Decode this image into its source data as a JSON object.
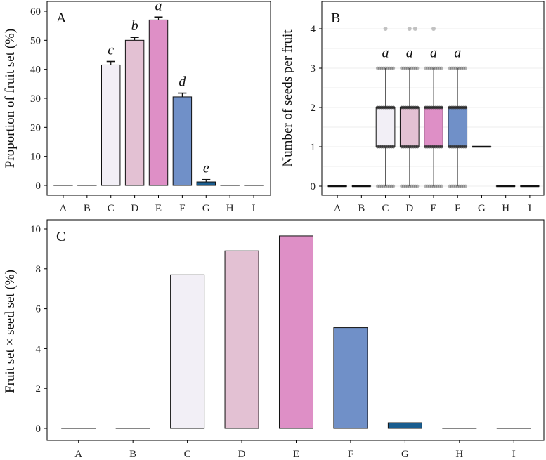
{
  "chart_data": [
    {
      "id": "A",
      "type": "bar",
      "panel_label": "A",
      "ylabel": "Proportion of fruit set (%)",
      "xlabel": "",
      "ylim": [
        0,
        60
      ],
      "yticks": [
        0,
        10,
        20,
        30,
        40,
        50,
        60
      ],
      "categories": [
        "A",
        "B",
        "C",
        "D",
        "E",
        "F",
        "G",
        "H",
        "I"
      ],
      "values": [
        0,
        0,
        41.5,
        50,
        57,
        30.5,
        1.2,
        0,
        0
      ],
      "errors": [
        0,
        0,
        1.2,
        1.0,
        1.0,
        1.3,
        0.8,
        0,
        0
      ],
      "letters": [
        "",
        "",
        "c",
        "b",
        "a",
        "d",
        "e",
        "",
        ""
      ],
      "colors": [
        "#f2eff6",
        "#f2eff6",
        "#f2eff6",
        "#e3c1d3",
        "#de8fc6",
        "#7090c8",
        "#1a5d8f",
        "#1a5d8f",
        "#1a5d8f"
      ]
    },
    {
      "id": "B",
      "type": "box",
      "panel_label": "B",
      "ylabel": "Number of seeds per fruit",
      "xlabel": "",
      "ylim": [
        0,
        4
      ],
      "yticks": [
        0,
        1,
        2,
        3,
        4
      ],
      "categories": [
        "A",
        "B",
        "C",
        "D",
        "E",
        "F",
        "G",
        "H",
        "I"
      ],
      "boxes": [
        {
          "q1": 0,
          "median": 0,
          "q3": 0,
          "low": 0,
          "high": 0,
          "outliers": []
        },
        {
          "q1": 0,
          "median": 0,
          "q3": 0,
          "low": 0,
          "high": 0,
          "outliers": []
        },
        {
          "q1": 1,
          "median": 2,
          "q3": 2,
          "low": 0,
          "high": 3,
          "outliers": [
            4
          ]
        },
        {
          "q1": 1,
          "median": 2,
          "q3": 2,
          "low": 0,
          "high": 3,
          "outliers": [
            4
          ]
        },
        {
          "q1": 1,
          "median": 2,
          "q3": 2,
          "low": 0,
          "high": 3,
          "outliers": [
            4
          ]
        },
        {
          "q1": 1,
          "median": 2,
          "q3": 2,
          "low": 0,
          "high": 3,
          "outliers": []
        },
        {
          "q1": 1,
          "median": 1,
          "q3": 1,
          "low": 1,
          "high": 1,
          "outliers": []
        },
        {
          "q1": 0,
          "median": 0,
          "q3": 0,
          "low": 0,
          "high": 0,
          "outliers": []
        },
        {
          "q1": 0,
          "median": 0,
          "q3": 0,
          "low": 0,
          "high": 0,
          "outliers": []
        }
      ],
      "letters": [
        "",
        "",
        "a",
        "a",
        "a",
        "a",
        "",
        "",
        ""
      ],
      "colors": [
        "#f2eff6",
        "#f2eff6",
        "#f2eff6",
        "#e3c1d3",
        "#de8fc6",
        "#7090c8",
        "#1a5d8f",
        "#1a5d8f",
        "#1a5d8f"
      ]
    },
    {
      "id": "C",
      "type": "bar",
      "panel_label": "C",
      "ylabel": "Fruit set × seed set (%)",
      "xlabel": "",
      "ylim": [
        0,
        10
      ],
      "yticks": [
        0,
        2,
        4,
        6,
        8,
        10
      ],
      "categories": [
        "A",
        "B",
        "C",
        "D",
        "E",
        "F",
        "G",
        "H",
        "I"
      ],
      "values": [
        0,
        0,
        7.7,
        8.9,
        9.65,
        5.05,
        0.28,
        0,
        0
      ],
      "colors": [
        "#f2eff6",
        "#f2eff6",
        "#f2eff6",
        "#e3c1d3",
        "#de8fc6",
        "#7090c8",
        "#1a5d8f",
        "#1a5d8f",
        "#1a5d8f"
      ]
    }
  ]
}
